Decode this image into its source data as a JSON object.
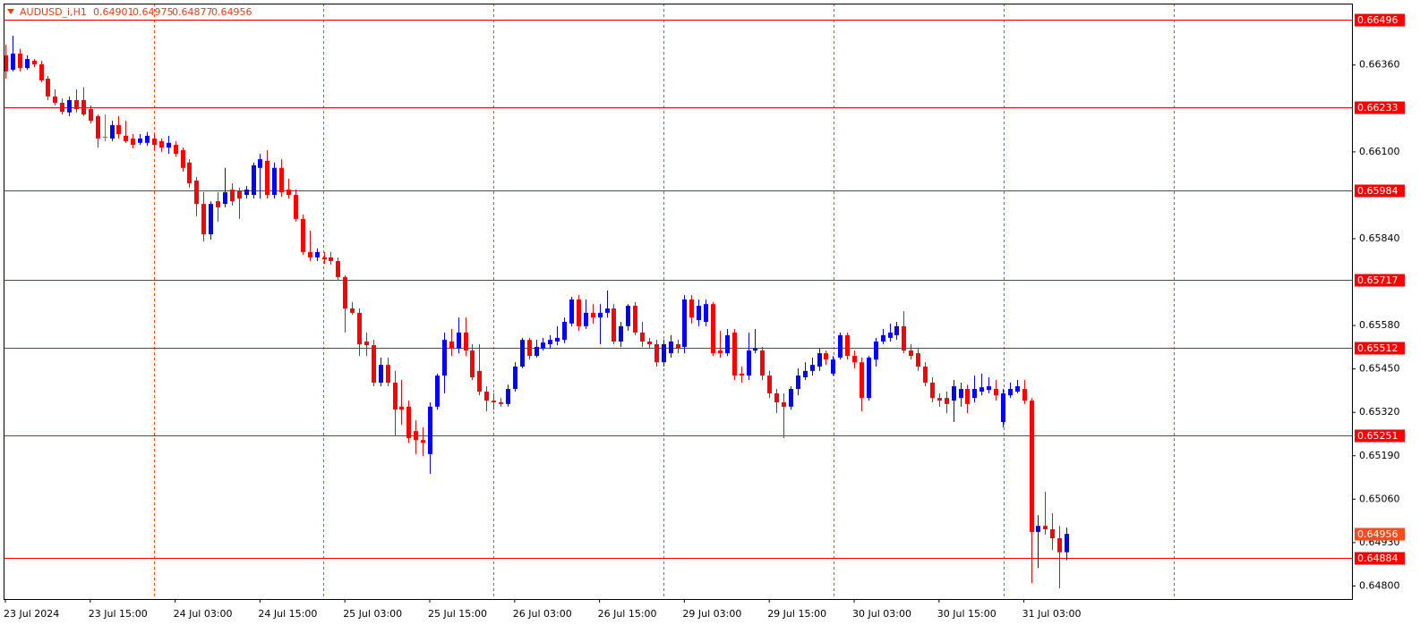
{
  "chart_data": {
    "type": "candlestick",
    "title": "AUDUSD_i,H1",
    "up_color": "#0000ff",
    "down_color": "#ff0000",
    "doji_color": "#00c000",
    "level_color": "#ff0000",
    "price_label_color": "#ff4a1a",
    "ylim": [
      0.64761,
      0.66544
    ],
    "yticks": [
      {
        "value": 0.648,
        "label": "0.64800"
      },
      {
        "value": 0.6493,
        "label": "0.64930"
      },
      {
        "value": 0.6506,
        "label": "0.65060"
      },
      {
        "value": 0.6519,
        "label": "0.65190"
      },
      {
        "value": 0.6532,
        "label": "0.65320"
      },
      {
        "value": 0.6545,
        "label": "0.65450"
      },
      {
        "value": 0.6558,
        "label": "0.65580"
      },
      {
        "value": 0.6584,
        "label": "0.65840"
      },
      {
        "value": 0.661,
        "label": "0.66100"
      },
      {
        "value": 0.6636,
        "label": "0.66360"
      }
    ],
    "levels": [
      0.66496,
      0.66233,
      0.65984,
      0.65717,
      0.65512,
      0.65251,
      0.64884
    ],
    "categories": [
      "23 Jul 2024",
      null,
      null,
      null,
      null,
      null,
      null,
      null,
      null,
      null,
      null,
      null,
      "23 Jul 15:00",
      null,
      null,
      null,
      null,
      null,
      null,
      null,
      null,
      null,
      null,
      null,
      "24 Jul 03:00",
      null,
      null,
      null,
      null,
      null,
      null,
      null,
      null,
      null,
      null,
      null,
      "24 Jul 15:00",
      null,
      null,
      null,
      null,
      null,
      null,
      null,
      null,
      null,
      null,
      null,
      "25 Jul 03:00",
      null,
      null,
      null,
      null,
      null,
      null,
      null,
      null,
      null,
      null,
      null,
      "25 Jul 15:00",
      null,
      null,
      null,
      null,
      null,
      null,
      null,
      null,
      null,
      null,
      null,
      "26 Jul 03:00",
      null,
      null,
      null,
      null,
      null,
      null,
      null,
      null,
      null,
      null,
      null,
      "26 Jul 15:00",
      null,
      null,
      null,
      null,
      null,
      null,
      null,
      null,
      null,
      null,
      null,
      "29 Jul 03:00",
      null,
      null,
      null,
      null,
      null,
      null,
      null,
      null,
      null,
      null,
      null,
      "29 Jul 15:00",
      null,
      null,
      null,
      null,
      null,
      null,
      null,
      null,
      null,
      null,
      null,
      "30 Jul 03:00",
      null,
      null,
      null,
      null,
      null,
      null,
      null,
      null,
      null,
      null,
      null,
      "30 Jul 15:00",
      null,
      null,
      null,
      null,
      null,
      null,
      null,
      null,
      null,
      null,
      null,
      "31 Jul 03:00",
      null,
      null,
      null,
      null,
      null,
      null
    ],
    "open": [
      0.66389,
      0.66346,
      0.66394,
      0.66351,
      0.66373,
      0.66362,
      0.66319,
      0.66266,
      0.66247,
      0.66218,
      0.66255,
      0.66255,
      0.66228,
      0.66207,
      0.66145,
      0.6614,
      0.6618,
      0.66148,
      0.6614,
      0.66127,
      0.66127,
      0.6614,
      0.66132,
      0.66113,
      0.66121,
      0.66105,
      0.66068,
      0.66014,
      0.65944,
      0.65853,
      0.65952,
      0.65944,
      0.65987,
      0.65982,
      0.65971,
      0.65971,
      0.66052,
      0.66073,
      0.65971,
      0.66052,
      0.65987,
      0.65971,
      0.65899,
      0.658,
      0.65784,
      0.65784,
      0.65784,
      0.65773,
      0.65725,
      0.65631,
      0.65618,
      0.65532,
      0.65521,
      0.65409,
      0.65462,
      0.65409,
      0.65337,
      0.65337,
      0.65264,
      0.65237,
      0.65195,
      0.65337,
      0.6543,
      0.65532,
      0.65511,
      0.65559,
      0.65505,
      0.65444,
      0.65382,
      0.65355,
      0.6535,
      0.65345,
      0.6539,
      0.65457,
      0.65537,
      0.65489,
      0.65511,
      0.65524,
      0.65532,
      0.65537,
      0.65586,
      0.65658,
      0.65578,
      0.65618,
      0.65604,
      0.65618,
      0.65631,
      0.65532,
      0.65578,
      0.65639,
      0.65559,
      0.65532,
      0.65524,
      0.6547,
      0.65497,
      0.65524,
      0.65516,
      0.65658,
      0.65596,
      0.65591,
      0.65644,
      0.65505,
      0.65497,
      0.65559,
      0.65436,
      0.6543,
      0.65505,
      0.65505,
      0.6543,
      0.65377,
      0.6535,
      0.65337,
      0.6539,
      0.65425,
      0.65444,
      0.65457,
      0.65497,
      0.65436,
      0.65484,
      0.65551,
      0.65489,
      0.6547,
      0.65363,
      0.65478,
      0.65532,
      0.65543,
      0.65551,
      0.65578,
      0.65505,
      0.65497,
      0.65457,
      0.65409,
      0.65363,
      0.65363,
      0.65355,
      0.65363,
      0.6539,
      0.65363,
      0.65382,
      0.65387,
      0.6539,
      0.65291,
      0.65371,
      0.65382,
      0.6539,
      0.65355,
      0.64962,
      0.6498,
      0.6497,
      0.64943,
      0.64901
    ],
    "high": [
      0.66421,
      0.66448,
      0.66408,
      0.66389,
      0.66378,
      0.66373,
      0.66327,
      0.66287,
      0.6626,
      0.66266,
      0.66287,
      0.66293,
      0.66239,
      0.66212,
      0.66212,
      0.66193,
      0.66207,
      0.66193,
      0.66153,
      0.66153,
      0.66159,
      0.66153,
      0.6614,
      0.66148,
      0.66132,
      0.66113,
      0.66078,
      0.66025,
      0.65979,
      0.65952,
      0.65979,
      0.66052,
      0.66006,
      0.65993,
      0.65998,
      0.66068,
      0.66094,
      0.66105,
      0.66068,
      0.66078,
      0.66019,
      0.65987,
      0.65912,
      0.65864,
      0.65811,
      0.658,
      0.658,
      0.65784,
      0.6573,
      0.6565,
      0.65631,
      0.65559,
      0.65537,
      0.65484,
      0.65484,
      0.65444,
      0.65417,
      0.65355,
      0.65296,
      0.65275,
      0.6535,
      0.65436,
      0.65559,
      0.6557,
      0.65604,
      0.65604,
      0.65524,
      0.65524,
      0.65398,
      0.65377,
      0.65363,
      0.65403,
      0.6547,
      0.65543,
      0.65543,
      0.65537,
      0.65543,
      0.65551,
      0.65578,
      0.65604,
      0.65666,
      0.65671,
      0.65658,
      0.65644,
      0.65644,
      0.65685,
      0.65644,
      0.65591,
      0.65644,
      0.6565,
      0.65591,
      0.65543,
      0.65537,
      0.65537,
      0.65551,
      0.65537,
      0.65671,
      0.65671,
      0.65658,
      0.65658,
      0.6565,
      0.65564,
      0.6557,
      0.6557,
      0.65457,
      0.65559,
      0.6557,
      0.65516,
      0.65444,
      0.6539,
      0.65377,
      0.65398,
      0.65452,
      0.6547,
      0.65484,
      0.65511,
      0.65505,
      0.65489,
      0.65559,
      0.65559,
      0.65505,
      0.65484,
      0.65489,
      0.65543,
      0.6557,
      0.65586,
      0.65591,
      0.65623,
      0.65524,
      0.65511,
      0.6547,
      0.65425,
      0.65377,
      0.65382,
      0.65417,
      0.65409,
      0.65403,
      0.6543,
      0.65436,
      0.65425,
      0.65417,
      0.6539,
      0.65409,
      0.65417,
      0.65417,
      0.65363,
      0.65012,
      0.65082,
      0.65018,
      0.6498,
      0.64975
    ],
    "low": [
      0.66319,
      0.66341,
      0.66341,
      0.66346,
      0.66354,
      0.66309,
      0.66255,
      0.66239,
      0.66212,
      0.66207,
      0.66218,
      0.66207,
      0.66185,
      0.66113,
      0.66132,
      0.66132,
      0.6614,
      0.66127,
      0.6611,
      0.66121,
      0.66118,
      0.66105,
      0.661,
      0.66094,
      0.66086,
      0.66041,
      0.65993,
      0.65907,
      0.65832,
      0.65837,
      0.65891,
      0.65934,
      0.65939,
      0.65899,
      0.6596,
      0.6596,
      0.6596,
      0.6596,
      0.6596,
      0.65966,
      0.6596,
      0.65891,
      0.65792,
      0.65773,
      0.65773,
      0.65765,
      0.65762,
      0.65714,
      0.65559,
      0.65612,
      0.65489,
      0.65489,
      0.65398,
      0.65398,
      0.65398,
      0.65248,
      0.65283,
      0.65229,
      0.65195,
      0.65189,
      0.65136,
      0.65328,
      0.65377,
      0.65489,
      0.65497,
      0.65489,
      0.65417,
      0.65371,
      0.65323,
      0.65328,
      0.65337,
      0.65337,
      0.65382,
      0.65452,
      0.65478,
      0.65484,
      0.65505,
      0.65511,
      0.65521,
      0.65527,
      0.65578,
      0.65564,
      0.6557,
      0.65586,
      0.65524,
      0.65604,
      0.65524,
      0.65516,
      0.65564,
      0.65551,
      0.65516,
      0.65511,
      0.65457,
      0.65457,
      0.65484,
      0.65497,
      0.65497,
      0.65586,
      0.65578,
      0.65578,
      0.65489,
      0.65484,
      0.65489,
      0.65417,
      0.65409,
      0.65417,
      0.65497,
      0.65417,
      0.65363,
      0.65318,
      0.65243,
      0.65328,
      0.65371,
      0.65417,
      0.6543,
      0.65444,
      0.65462,
      0.6543,
      0.65478,
      0.65478,
      0.65452,
      0.65323,
      0.65355,
      0.65457,
      0.65524,
      0.65532,
      0.65537,
      0.65497,
      0.65478,
      0.65444,
      0.65398,
      0.6535,
      0.65337,
      0.65318,
      0.65291,
      0.65337,
      0.65318,
      0.6535,
      0.65371,
      0.65377,
      0.65355,
      0.65275,
      0.65363,
      0.65377,
      0.65345,
      0.64809,
      0.64854,
      0.64954,
      0.64908,
      0.64793,
      0.64877
    ],
    "close": [
      0.66341,
      0.66394,
      0.66351,
      0.66378,
      0.66362,
      0.66314,
      0.66266,
      0.66247,
      0.6622,
      0.66255,
      0.66228,
      0.66212,
      0.66193,
      0.6614,
      0.66145,
      0.6618,
      0.66153,
      0.66132,
      0.66121,
      0.6614,
      0.66148,
      0.66121,
      0.66113,
      0.66127,
      0.66094,
      0.66052,
      0.66006,
      0.65944,
      0.65853,
      0.65944,
      0.65934,
      0.65979,
      0.65952,
      0.6596,
      0.65987,
      0.6606,
      0.66078,
      0.65971,
      0.66052,
      0.65979,
      0.65971,
      0.65899,
      0.658,
      0.65784,
      0.658,
      0.65778,
      0.65773,
      0.65725,
      0.65631,
      0.65618,
      0.65524,
      0.65521,
      0.65409,
      0.65462,
      0.65409,
      0.65328,
      0.65328,
      0.65243,
      0.65237,
      0.65229,
      0.65337,
      0.6543,
      0.65537,
      0.65511,
      0.65559,
      0.65505,
      0.65425,
      0.65382,
      0.65355,
      0.6535,
      0.65345,
      0.6539,
      0.65457,
      0.65537,
      0.65489,
      0.65516,
      0.65529,
      0.65537,
      0.65543,
      0.65591,
      0.65658,
      0.65578,
      0.65618,
      0.65604,
      0.65618,
      0.65631,
      0.65532,
      0.65578,
      0.65639,
      0.65559,
      0.65532,
      0.65524,
      0.6547,
      0.65524,
      0.65532,
      0.65511,
      0.65658,
      0.65604,
      0.65639,
      0.65644,
      0.65497,
      0.65497,
      0.65551,
      0.6543,
      0.6543,
      0.65505,
      0.65511,
      0.6543,
      0.65377,
      0.6535,
      0.65337,
      0.6539,
      0.6543,
      0.65444,
      0.65462,
      0.65497,
      0.65478,
      0.65478,
      0.65551,
      0.65489,
      0.6547,
      0.65363,
      0.65484,
      0.65532,
      0.65551,
      0.65559,
      0.65578,
      0.65505,
      0.65489,
      0.65457,
      0.65409,
      0.65363,
      0.65355,
      0.65345,
      0.65398,
      0.6539,
      0.65345,
      0.6539,
      0.65395,
      0.65398,
      0.65371,
      0.65377,
      0.6539,
      0.65398,
      0.65355,
      0.64962,
      0.6498,
      0.6497,
      0.64943,
      0.64901,
      0.64956
    ]
  }
}
